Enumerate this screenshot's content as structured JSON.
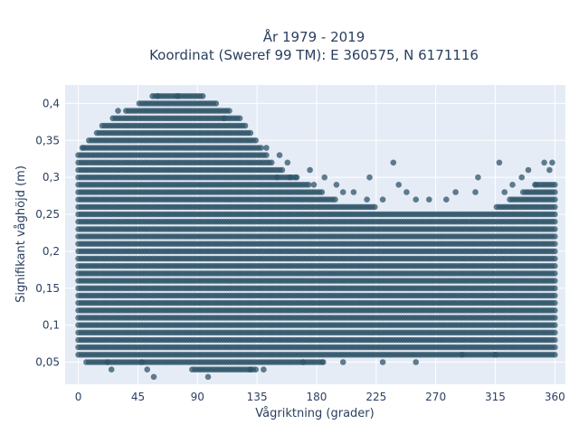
{
  "chart_data": {
    "type": "scatter",
    "title_line1": "År 1979 - 2019",
    "title_line2": "Koordinat (Sweref 99 TM): E 360575, N 6171116",
    "xlabel": "Vågriktning (grader)",
    "ylabel": "Signifikant våghöjd (m)",
    "xlim": [
      -10,
      368
    ],
    "ylim": [
      0.02,
      0.425
    ],
    "x_ticks": [
      0,
      45,
      90,
      135,
      180,
      225,
      270,
      315,
      360
    ],
    "y_ticks": [
      0.05,
      0.1,
      0.15,
      0.2,
      0.25,
      0.3,
      0.35,
      0.4
    ],
    "y_tick_labels": [
      "0,05",
      "0,1",
      "0,15",
      "0,2",
      "0,25",
      "0,3",
      "0,35",
      "0,4"
    ],
    "grid": true,
    "y_step": 0.01,
    "x_step": 2,
    "marker_color": "#2f5468",
    "plot_bg": "#e5ecf6",
    "envelope": [
      {
        "x": 0,
        "ymin": 0.06,
        "ymax": 0.33
      },
      {
        "x": 10,
        "ymin": 0.05,
        "ymax": 0.35
      },
      {
        "x": 20,
        "ymin": 0.05,
        "ymax": 0.37
      },
      {
        "x": 30,
        "ymin": 0.05,
        "ymax": 0.38
      },
      {
        "x": 40,
        "ymin": 0.05,
        "ymax": 0.39
      },
      {
        "x": 50,
        "ymin": 0.05,
        "ymax": 0.4
      },
      {
        "x": 60,
        "ymin": 0.05,
        "ymax": 0.41
      },
      {
        "x": 70,
        "ymin": 0.05,
        "ymax": 0.41
      },
      {
        "x": 80,
        "ymin": 0.05,
        "ymax": 0.41
      },
      {
        "x": 90,
        "ymin": 0.04,
        "ymax": 0.41
      },
      {
        "x": 100,
        "ymin": 0.04,
        "ymax": 0.4
      },
      {
        "x": 110,
        "ymin": 0.04,
        "ymax": 0.39
      },
      {
        "x": 120,
        "ymin": 0.04,
        "ymax": 0.38
      },
      {
        "x": 130,
        "ymin": 0.04,
        "ymax": 0.36
      },
      {
        "x": 140,
        "ymin": 0.05,
        "ymax": 0.33
      },
      {
        "x": 150,
        "ymin": 0.05,
        "ymax": 0.31
      },
      {
        "x": 160,
        "ymin": 0.05,
        "ymax": 0.3
      },
      {
        "x": 170,
        "ymin": 0.05,
        "ymax": 0.29
      },
      {
        "x": 180,
        "ymin": 0.05,
        "ymax": 0.28
      },
      {
        "x": 190,
        "ymin": 0.06,
        "ymax": 0.27
      },
      {
        "x": 200,
        "ymin": 0.06,
        "ymax": 0.26
      },
      {
        "x": 210,
        "ymin": 0.06,
        "ymax": 0.26
      },
      {
        "x": 220,
        "ymin": 0.06,
        "ymax": 0.26
      },
      {
        "x": 230,
        "ymin": 0.06,
        "ymax": 0.25
      },
      {
        "x": 240,
        "ymin": 0.06,
        "ymax": 0.25
      },
      {
        "x": 250,
        "ymin": 0.06,
        "ymax": 0.25
      },
      {
        "x": 260,
        "ymin": 0.06,
        "ymax": 0.25
      },
      {
        "x": 270,
        "ymin": 0.06,
        "ymax": 0.25
      },
      {
        "x": 280,
        "ymin": 0.06,
        "ymax": 0.25
      },
      {
        "x": 290,
        "ymin": 0.06,
        "ymax": 0.25
      },
      {
        "x": 300,
        "ymin": 0.06,
        "ymax": 0.25
      },
      {
        "x": 310,
        "ymin": 0.06,
        "ymax": 0.25
      },
      {
        "x": 320,
        "ymin": 0.06,
        "ymax": 0.26
      },
      {
        "x": 330,
        "ymin": 0.06,
        "ymax": 0.27
      },
      {
        "x": 340,
        "ymin": 0.06,
        "ymax": 0.28
      },
      {
        "x": 350,
        "ymin": 0.06,
        "ymax": 0.29
      },
      {
        "x": 360,
        "ymin": 0.06,
        "ymax": 0.29
      }
    ],
    "outliers": [
      [
        3,
        0.34
      ],
      [
        22,
        0.05
      ],
      [
        25,
        0.04
      ],
      [
        30,
        0.39
      ],
      [
        48,
        0.05
      ],
      [
        52,
        0.04
      ],
      [
        57,
        0.03
      ],
      [
        98,
        0.03
      ],
      [
        142,
        0.34
      ],
      [
        150,
        0.3
      ],
      [
        152,
        0.33
      ],
      [
        158,
        0.32
      ],
      [
        160,
        0.3
      ],
      [
        165,
        0.3
      ],
      [
        175,
        0.31
      ],
      [
        178,
        0.29
      ],
      [
        186,
        0.3
      ],
      [
        195,
        0.29
      ],
      [
        200,
        0.28
      ],
      [
        208,
        0.28
      ],
      [
        218,
        0.27
      ],
      [
        220,
        0.3
      ],
      [
        230,
        0.27
      ],
      [
        238,
        0.32
      ],
      [
        242,
        0.29
      ],
      [
        248,
        0.28
      ],
      [
        255,
        0.27
      ],
      [
        265,
        0.27
      ],
      [
        278,
        0.27
      ],
      [
        285,
        0.28
      ],
      [
        300,
        0.28
      ],
      [
        302,
        0.3
      ],
      [
        318,
        0.32
      ],
      [
        322,
        0.28
      ],
      [
        328,
        0.29
      ],
      [
        335,
        0.3
      ],
      [
        340,
        0.31
      ],
      [
        345,
        0.29
      ],
      [
        352,
        0.32
      ],
      [
        356,
        0.31
      ],
      [
        358,
        0.32
      ],
      [
        110,
        0.38
      ],
      [
        60,
        0.41
      ],
      [
        75,
        0.41
      ],
      [
        130,
        0.04
      ],
      [
        140,
        0.04
      ],
      [
        230,
        0.05
      ],
      [
        255,
        0.05
      ],
      [
        290,
        0.06
      ],
      [
        315,
        0.06
      ],
      [
        200,
        0.05
      ],
      [
        185,
        0.05
      ],
      [
        170,
        0.05
      ]
    ]
  }
}
